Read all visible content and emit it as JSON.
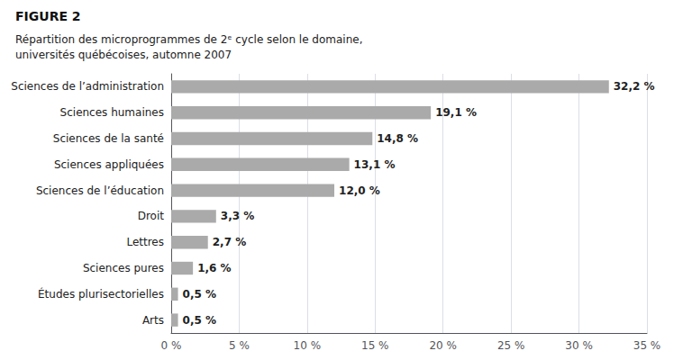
{
  "chart_data": {
    "type": "bar",
    "orientation": "horizontal",
    "title": "FIGURE 2",
    "subtitle": "Répartition des microprogrammes de 2ᵉ cycle selon le domaine,\nuniversités québécoises, automne 2007",
    "categories": [
      "Arts",
      "Études plurisectorielles",
      "Sciences pures",
      "Lettres",
      "Droit",
      "Sciences de l’éducation",
      "Sciences appliquées",
      "Sciences de la santé",
      "Sciences humaines",
      "Sciences de l’administration"
    ],
    "values": [
      0.5,
      0.5,
      1.6,
      2.7,
      3.3,
      12.0,
      13.1,
      14.8,
      19.1,
      32.2
    ],
    "value_labels": [
      "0,5 %",
      "0,5 %",
      "1,6 %",
      "2,7 %",
      "3,3 %",
      "12,0 %",
      "13,1 %",
      "14,8 %",
      "19,1 %",
      "32,2 %"
    ],
    "data_labels": true,
    "color": "#aaaaaa",
    "xlim": [
      0,
      35
    ],
    "xticks": [
      {
        "value": 0,
        "label": "0 %"
      },
      {
        "value": 5,
        "label": "5 %"
      },
      {
        "value": 10,
        "label": "10 %"
      },
      {
        "value": 15,
        "label": "15 %"
      },
      {
        "value": 20,
        "label": "20 %"
      },
      {
        "value": 25,
        "label": "25 %"
      },
      {
        "value": 30,
        "label": "30 %"
      },
      {
        "value": 35,
        "label": "35 %"
      }
    ],
    "grid": true
  }
}
